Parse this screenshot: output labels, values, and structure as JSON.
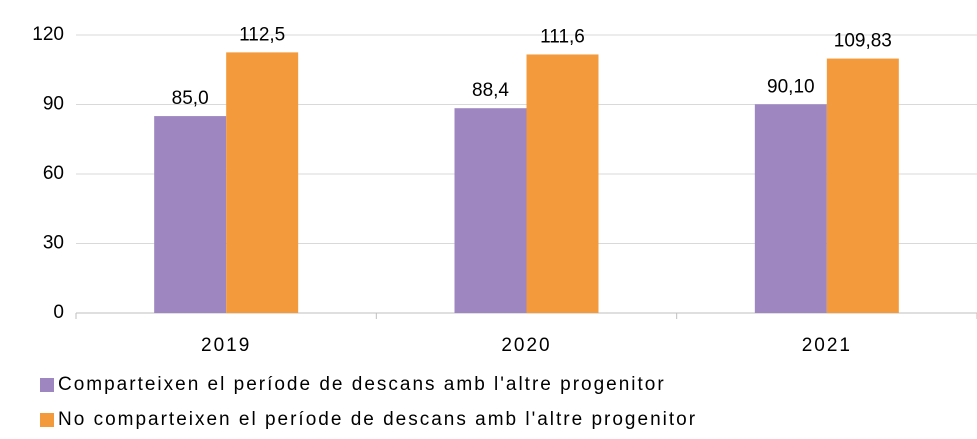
{
  "chart_data": {
    "type": "bar",
    "categories": [
      "2019",
      "2020",
      "2021"
    ],
    "series": [
      {
        "name": "Comparteixen el període de descans amb l'altre progenitor",
        "color": "#9e86c1",
        "values": [
          85.0,
          88.4,
          90.1
        ],
        "value_labels": [
          "85,0",
          "88,4",
          "90,10"
        ]
      },
      {
        "name": "No comparteixen el període de descans amb l'altre progenitor",
        "color": "#f39b3c",
        "values": [
          112.5,
          111.6,
          109.83
        ],
        "value_labels": [
          "112,5",
          "111,6",
          "109,83"
        ]
      }
    ],
    "ylim": [
      0,
      120
    ],
    "yticks": [
      0,
      30,
      60,
      90,
      120
    ],
    "grid": true
  }
}
